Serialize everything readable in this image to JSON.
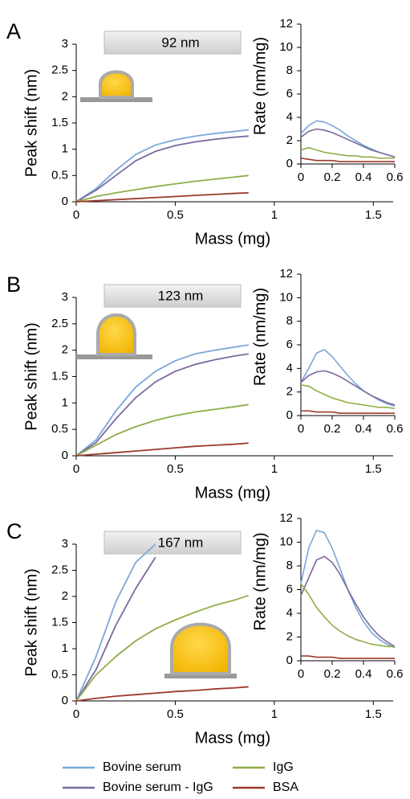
{
  "legend": [
    {
      "name": "Bovine serum",
      "color": "#7ba7d9"
    },
    {
      "name": "Bovine serum - IgG",
      "color": "#7a6a9e"
    },
    {
      "name": "IgG",
      "color": "#8fae4a"
    },
    {
      "name": "BSA",
      "color": "#9a3b2a"
    }
  ],
  "chart_data": [
    {
      "type": "line",
      "panel": "A",
      "annotation": "92 nm",
      "xlabel": "Mass (mg)",
      "ylabel": "Peak shift (nm)",
      "x": [
        0,
        0.1,
        0.2,
        0.3,
        0.4,
        0.5,
        0.6,
        0.7,
        0.8,
        0.87
      ],
      "series": [
        {
          "color": "#7ba7d9",
          "values": [
            0,
            0.25,
            0.6,
            0.9,
            1.08,
            1.18,
            1.25,
            1.3,
            1.34,
            1.37
          ]
        },
        {
          "color": "#7a6a9e",
          "values": [
            0,
            0.22,
            0.5,
            0.78,
            0.96,
            1.07,
            1.14,
            1.19,
            1.23,
            1.25
          ]
        },
        {
          "color": "#8fae4a",
          "values": [
            0,
            0.1,
            0.17,
            0.23,
            0.29,
            0.34,
            0.39,
            0.43,
            0.47,
            0.5
          ]
        },
        {
          "color": "#9a3b2a",
          "values": [
            0,
            0.02,
            0.04,
            0.06,
            0.08,
            0.1,
            0.12,
            0.14,
            0.16,
            0.17
          ]
        }
      ],
      "xlim": [
        0,
        1.6
      ],
      "xticks": [
        0,
        0.5,
        1,
        1.5
      ],
      "ylim": [
        0,
        3
      ],
      "yticks": [
        0,
        0.5,
        1,
        1.5,
        2,
        2.5,
        3
      ]
    },
    {
      "type": "line",
      "ylabel": "Rate (nm/mg)",
      "x": [
        0,
        0.05,
        0.1,
        0.15,
        0.2,
        0.25,
        0.3,
        0.35,
        0.4,
        0.45,
        0.5,
        0.55,
        0.6
      ],
      "series": [
        {
          "color": "#7ba7d9",
          "values": [
            2.6,
            3.3,
            3.7,
            3.6,
            3.3,
            2.9,
            2.4,
            2.0,
            1.6,
            1.3,
            1.0,
            0.8,
            0.6
          ]
        },
        {
          "color": "#7a6a9e",
          "values": [
            2.3,
            2.8,
            3.0,
            2.9,
            2.7,
            2.4,
            2.1,
            1.8,
            1.5,
            1.2,
            1.0,
            0.8,
            0.6
          ]
        },
        {
          "color": "#8fae4a",
          "values": [
            1.2,
            1.4,
            1.2,
            1.0,
            0.9,
            0.8,
            0.7,
            0.7,
            0.6,
            0.6,
            0.5,
            0.5,
            0.5
          ]
        },
        {
          "color": "#9a3b2a",
          "values": [
            0.5,
            0.4,
            0.3,
            0.3,
            0.3,
            0.2,
            0.2,
            0.2,
            0.2,
            0.2,
            0.2,
            0.2,
            0.2
          ]
        }
      ],
      "xlim": [
        0,
        0.6
      ],
      "xticks": [
        0,
        0.2,
        0.4,
        0.6
      ],
      "ylim": [
        0,
        12
      ],
      "yticks": [
        0,
        2,
        4,
        6,
        8,
        10,
        12
      ]
    },
    {
      "type": "line",
      "panel": "B",
      "annotation": "123 nm",
      "xlabel": "Mass (mg)",
      "ylabel": "Peak shift (nm)",
      "x": [
        0,
        0.1,
        0.2,
        0.3,
        0.4,
        0.5,
        0.6,
        0.7,
        0.8,
        0.87
      ],
      "series": [
        {
          "color": "#7ba7d9",
          "values": [
            0,
            0.3,
            0.85,
            1.3,
            1.6,
            1.8,
            1.93,
            2.0,
            2.06,
            2.1
          ]
        },
        {
          "color": "#7a6a9e",
          "values": [
            0,
            0.25,
            0.7,
            1.1,
            1.4,
            1.6,
            1.73,
            1.82,
            1.89,
            1.93
          ]
        },
        {
          "color": "#8fae4a",
          "values": [
            0,
            0.2,
            0.4,
            0.55,
            0.67,
            0.76,
            0.83,
            0.88,
            0.93,
            0.97
          ]
        },
        {
          "color": "#9a3b2a",
          "values": [
            0,
            0.03,
            0.06,
            0.09,
            0.12,
            0.15,
            0.18,
            0.2,
            0.22,
            0.24
          ]
        }
      ],
      "xlim": [
        0,
        1.6
      ],
      "xticks": [
        0,
        0.5,
        1,
        1.5
      ],
      "ylim": [
        0,
        3
      ],
      "yticks": [
        0,
        0.5,
        1,
        1.5,
        2,
        2.5,
        3
      ]
    },
    {
      "type": "line",
      "ylabel": "Rate (nm/mg)",
      "x": [
        0,
        0.05,
        0.1,
        0.15,
        0.2,
        0.25,
        0.3,
        0.35,
        0.4,
        0.45,
        0.5,
        0.55,
        0.6
      ],
      "series": [
        {
          "color": "#7ba7d9",
          "values": [
            2.8,
            4.0,
            5.3,
            5.6,
            5.0,
            4.2,
            3.4,
            2.7,
            2.1,
            1.7,
            1.3,
            1.0,
            0.8
          ]
        },
        {
          "color": "#7a6a9e",
          "values": [
            2.8,
            3.4,
            3.7,
            3.8,
            3.6,
            3.3,
            2.9,
            2.5,
            2.1,
            1.7,
            1.4,
            1.1,
            0.9
          ]
        },
        {
          "color": "#8fae4a",
          "values": [
            2.6,
            2.5,
            2.1,
            1.8,
            1.5,
            1.3,
            1.1,
            1.0,
            0.9,
            0.8,
            0.7,
            0.7,
            0.6
          ]
        },
        {
          "color": "#9a3b2a",
          "values": [
            0.4,
            0.4,
            0.3,
            0.3,
            0.3,
            0.2,
            0.2,
            0.2,
            0.2,
            0.2,
            0.2,
            0.2,
            0.2
          ]
        }
      ],
      "xlim": [
        0,
        0.6
      ],
      "xticks": [
        0,
        0.2,
        0.4,
        0.6
      ],
      "ylim": [
        0,
        12
      ],
      "yticks": [
        0,
        2,
        4,
        6,
        8,
        10,
        12
      ]
    },
    {
      "type": "line",
      "panel": "C",
      "annotation": "167 nm",
      "xlabel": "Mass (mg)",
      "ylabel": "Peak shift (nm)",
      "x": [
        0,
        0.1,
        0.2,
        0.3,
        0.4,
        0.5,
        0.6,
        0.7,
        0.8,
        0.87
      ],
      "series": [
        {
          "color": "#7ba7d9",
          "values": [
            0,
            0.85,
            1.9,
            2.65,
            3.0,
            null,
            null,
            null,
            null,
            null
          ]
        },
        {
          "color": "#7a6a9e",
          "values": [
            0,
            0.6,
            1.45,
            2.15,
            2.75,
            null,
            null,
            null,
            null,
            null
          ]
        },
        {
          "color": "#8fae4a",
          "values": [
            0,
            0.5,
            0.85,
            1.15,
            1.38,
            1.55,
            1.7,
            1.83,
            1.93,
            2.02
          ]
        },
        {
          "color": "#9a3b2a",
          "values": [
            0,
            0.05,
            0.09,
            0.12,
            0.15,
            0.18,
            0.2,
            0.23,
            0.25,
            0.27
          ]
        }
      ],
      "xlim": [
        0,
        1.6
      ],
      "xticks": [
        0,
        0.5,
        1,
        1.5
      ],
      "ylim": [
        0,
        3
      ],
      "yticks": [
        0,
        0.5,
        1,
        1.5,
        2,
        2.5,
        3
      ]
    },
    {
      "type": "line",
      "ylabel": "Rate (nm/mg)",
      "x": [
        0,
        0.05,
        0.1,
        0.15,
        0.2,
        0.25,
        0.3,
        0.35,
        0.4,
        0.45,
        0.5,
        0.55,
        0.6
      ],
      "series": [
        {
          "color": "#7ba7d9",
          "values": [
            6.5,
            9.5,
            11.0,
            10.8,
            9.5,
            7.8,
            6.0,
            4.5,
            3.3,
            2.4,
            1.8,
            1.4,
            1.1
          ]
        },
        {
          "color": "#7a6a9e",
          "values": [
            5.5,
            7.0,
            8.5,
            8.8,
            8.3,
            7.3,
            6.0,
            4.8,
            3.7,
            2.8,
            2.1,
            1.6,
            1.2
          ]
        },
        {
          "color": "#8fae4a",
          "values": [
            6.5,
            5.6,
            4.5,
            3.7,
            3.0,
            2.5,
            2.1,
            1.8,
            1.6,
            1.4,
            1.3,
            1.2,
            1.2
          ]
        },
        {
          "color": "#9a3b2a",
          "values": [
            0.4,
            0.4,
            0.3,
            0.3,
            0.3,
            0.2,
            0.2,
            0.2,
            0.2,
            0.2,
            0.2,
            0.2,
            0.2
          ]
        }
      ],
      "xlim": [
        0,
        0.6
      ],
      "xticks": [
        0,
        0.2,
        0.4,
        0.6
      ],
      "ylim": [
        0,
        12
      ],
      "yticks": [
        0,
        2,
        4,
        6,
        8,
        10,
        12
      ]
    }
  ]
}
